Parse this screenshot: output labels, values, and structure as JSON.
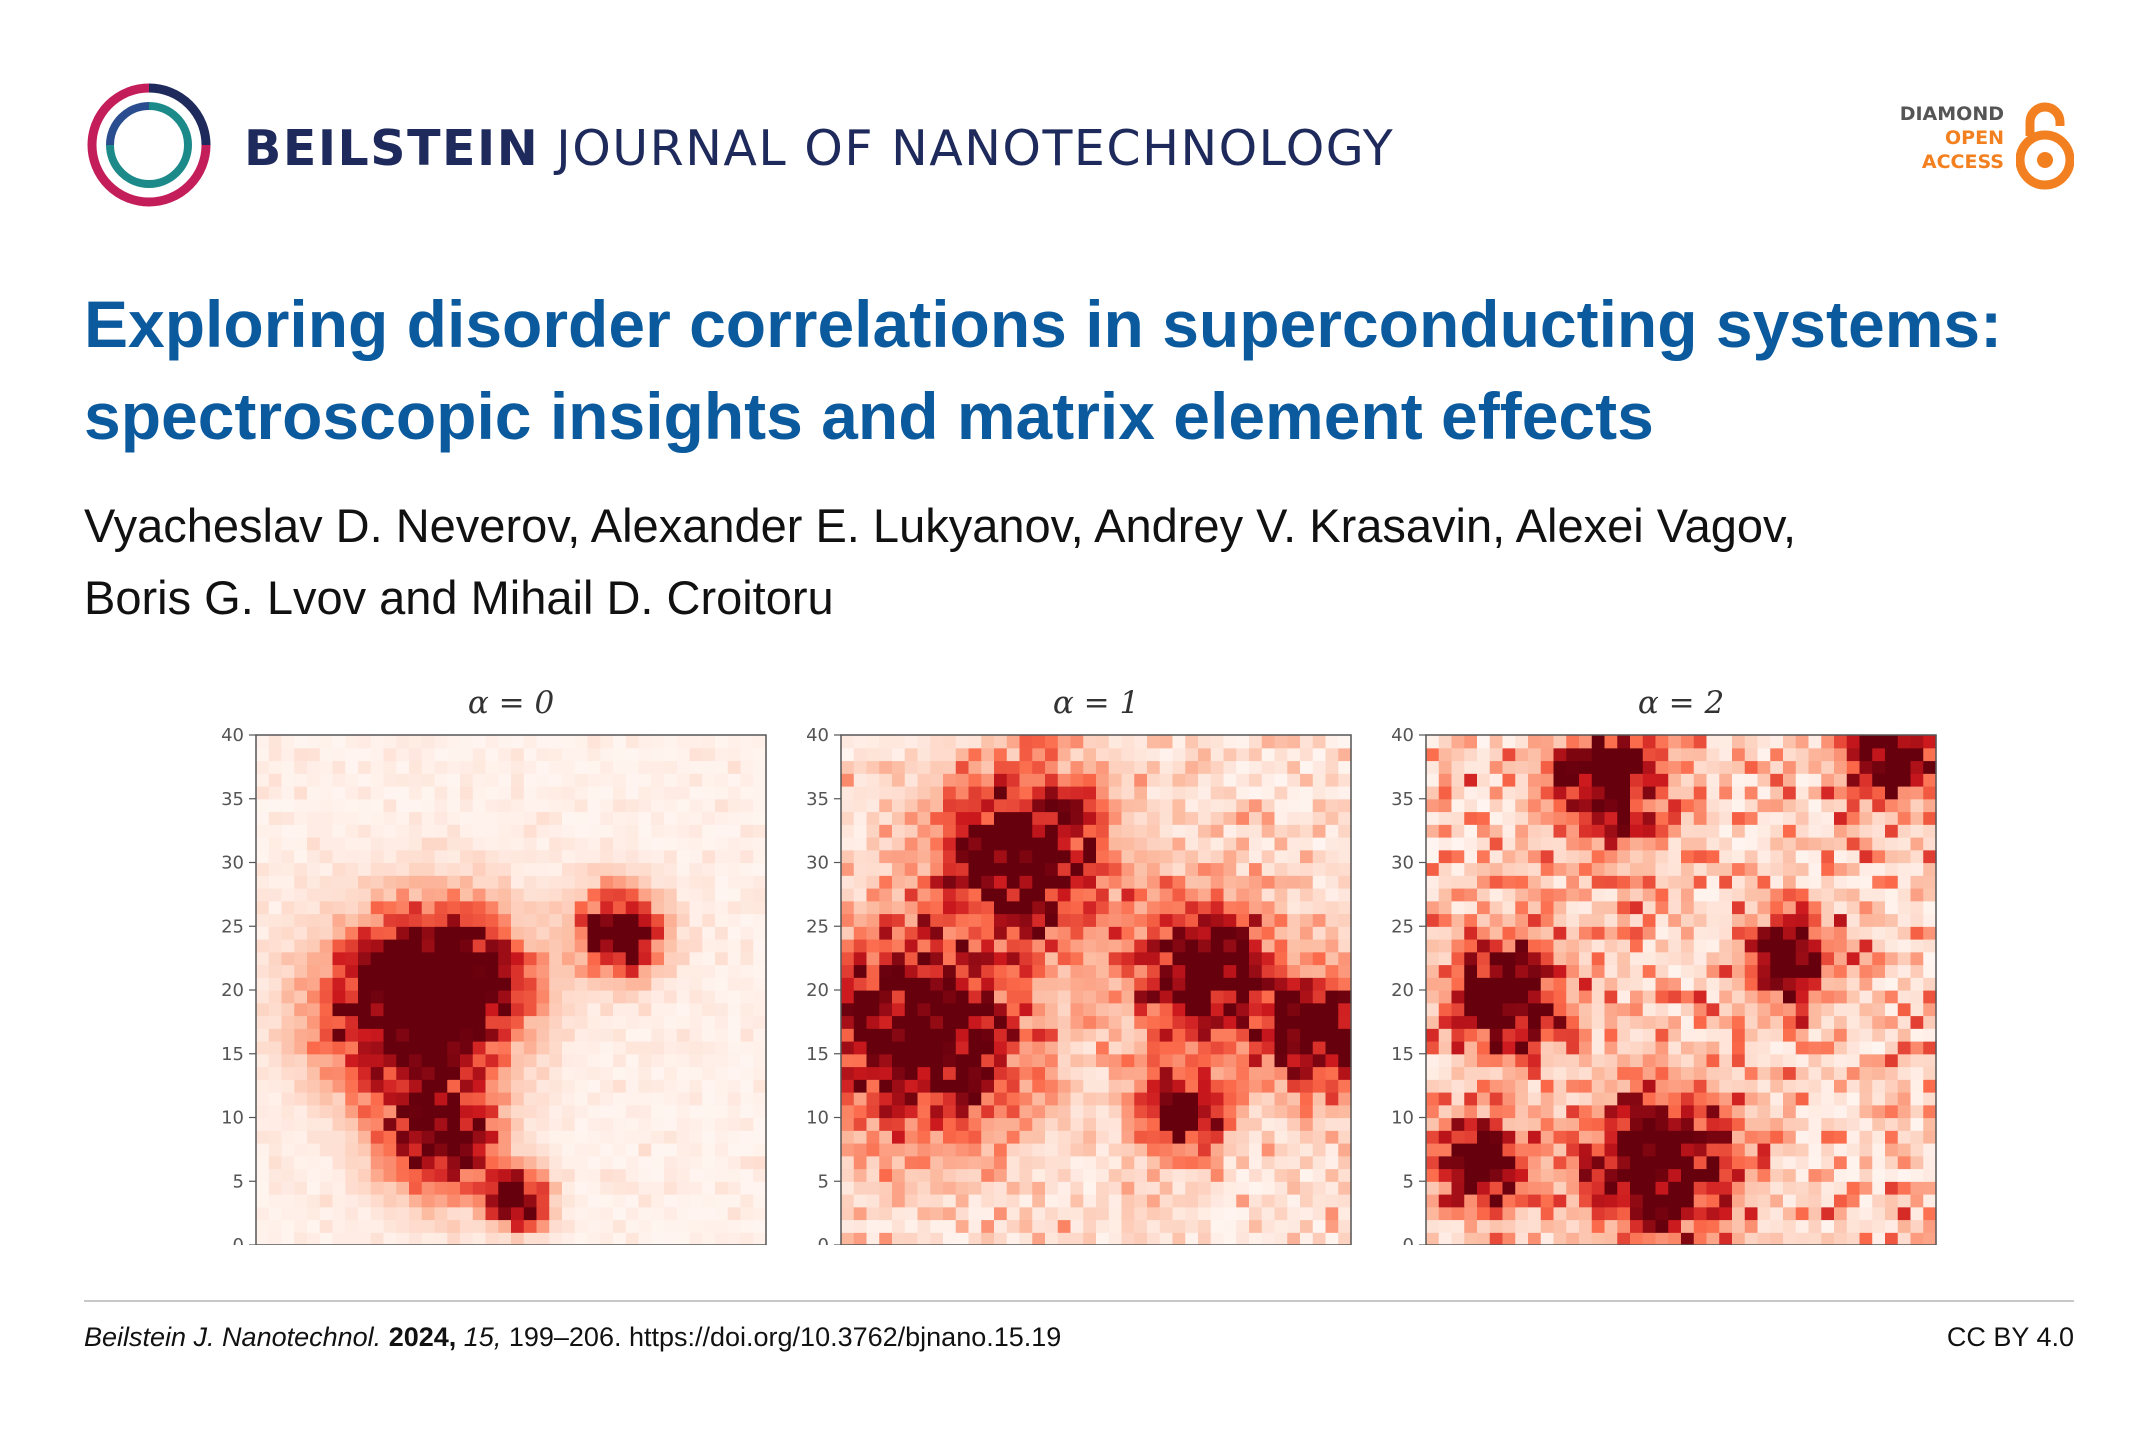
{
  "header": {
    "journal_bold": "BEILSTEIN",
    "journal_rest": "JOURNAL OF NANOTECHNOLOGY",
    "badge": {
      "line1": "DIAMOND",
      "line2": "OPEN",
      "line3": "ACCESS"
    }
  },
  "title_lines": [
    "Exploring disorder correlations in superconducting systems:",
    "spectroscopic insights and matrix element effects"
  ],
  "author_lines": [
    "Vyacheslav D. Neverov, Alexander E. Lukyanov, Andrey V. Krasavin, Alexei Vagov,",
    "Boris G. Lvov and Mihail D. Croitoru"
  ],
  "chart_data": [
    {
      "type": "heatmap",
      "title": "α = 0",
      "xlim": [
        0,
        40
      ],
      "ylim": [
        0,
        40
      ],
      "grid_size": 40,
      "x_ticks": [
        "0",
        "5",
        "10",
        "15",
        "20",
        "25",
        "30",
        "35",
        "40"
      ],
      "y_ticks": [
        "0",
        "5",
        "10",
        "15",
        "20",
        "25",
        "30",
        "35",
        "40"
      ],
      "colormap": "Reds",
      "clusters": [
        [
          11,
          18,
          6
        ],
        [
          15,
          20,
          5
        ],
        [
          14,
          8,
          4
        ],
        [
          28,
          24,
          3
        ],
        [
          20,
          3,
          2
        ]
      ],
      "background_level": 0.05
    },
    {
      "type": "heatmap",
      "title": "α = 1",
      "xlim": [
        0,
        40
      ],
      "ylim": [
        0,
        40
      ],
      "grid_size": 40,
      "x_ticks": [
        "0",
        "5",
        "10",
        "15",
        "20",
        "25",
        "30",
        "35",
        "40"
      ],
      "y_ticks": [
        "0",
        "5",
        "10",
        "15",
        "20",
        "25",
        "30",
        "35",
        "40"
      ],
      "colormap": "Reds",
      "clusters": [
        [
          6,
          16,
          7
        ],
        [
          14,
          30,
          6
        ],
        [
          28,
          21,
          5
        ],
        [
          37,
          16,
          4
        ],
        [
          26,
          10,
          3
        ]
      ],
      "background_level": 0.2
    },
    {
      "type": "heatmap",
      "title": "α = 2",
      "xlim": [
        0,
        40
      ],
      "ylim": [
        0,
        40
      ],
      "grid_size": 40,
      "x_ticks": [
        "0",
        "5",
        "10",
        "15",
        "20",
        "25",
        "30",
        "35",
        "40"
      ],
      "y_ticks": [
        "0",
        "5",
        "10",
        "15",
        "20",
        "25",
        "30",
        "35",
        "40"
      ],
      "colormap": "Reds",
      "clusters": [
        [
          18,
          6,
          5
        ],
        [
          14,
          36,
          4
        ],
        [
          6,
          19,
          4
        ],
        [
          4,
          6,
          3
        ],
        [
          36,
          38,
          3
        ],
        [
          28,
          22,
          3
        ]
      ],
      "background_level": 0.35
    }
  ],
  "footer": {
    "journal_abbrev": "Beilstein J. Nanotechnol.",
    "year": "2024,",
    "volume": "15,",
    "pages_doi": "199–206. https://doi.org/10.3762/bjnano.15.19",
    "license": "CC BY 4.0"
  },
  "colors": {
    "title": "#0b5a9e",
    "journal": "#1f2a5c",
    "badge_orange": "#f38020",
    "rule": "#c8c8c8"
  }
}
